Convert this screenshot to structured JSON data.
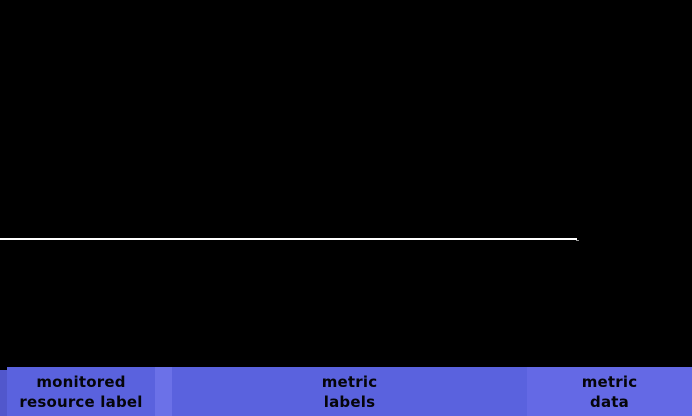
{
  "colors": {
    "bg": "#000000",
    "divider": "#ffffff",
    "nub": "#9a9a9a",
    "bar-base": "#5157cc",
    "bar-gap": "#6b71e8",
    "label-box": "#5a62de",
    "label-box-light": "#6469e5",
    "label-text": "#05050a"
  },
  "annotation_bar": {
    "items": [
      {
        "id": "monitored-resource-label",
        "line1": "monitored",
        "line2": "resource label"
      },
      {
        "id": "metric-labels",
        "line1": "metric",
        "line2": "labels"
      },
      {
        "id": "metric-data",
        "line1": "metric",
        "line2": "data"
      }
    ]
  }
}
